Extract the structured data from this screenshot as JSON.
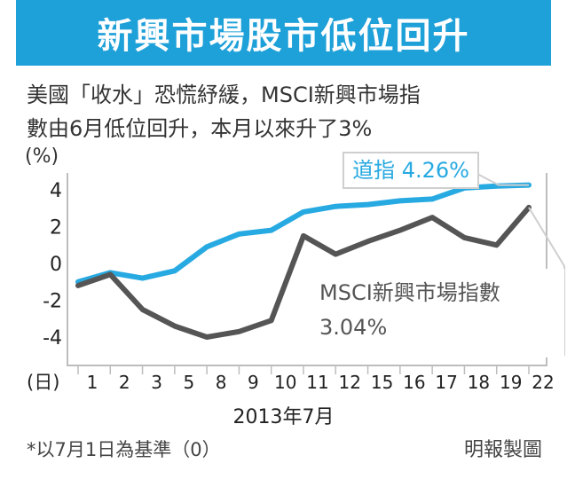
{
  "title": "新興市場股市低位回升",
  "subtitle_lines": [
    "美國「收水」恐慌紓緩，MSCI新興市場指",
    "數由6月低位回升，本月以來升了3%"
  ],
  "unit": "(%)",
  "month_label": "2013年7月",
  "footnote": "*以7月1日為基準（0）",
  "credit": "明報製圖",
  "colors": {
    "title_bg": "#1ea0d8",
    "dow_line": "#27a9e1",
    "msci_line": "#555555",
    "callout_border": "#cfcfcf"
  },
  "chart_data": {
    "type": "line",
    "title": "新興市場股市低位回升",
    "xlabel": "2013年7月",
    "ylabel": "(%)",
    "x_unit": "(日)",
    "categories": [
      "1",
      "2",
      "3",
      "5",
      "8",
      "9",
      "10",
      "11",
      "12",
      "15",
      "16",
      "17",
      "18",
      "19",
      "22"
    ],
    "ylim": [
      -5,
      5
    ],
    "yticks": [
      4,
      2,
      0,
      -2,
      -4
    ],
    "ytick_labels": [
      "4",
      "2",
      "0",
      "-2",
      "-4"
    ],
    "series": [
      {
        "name": "道指",
        "label": "道指 4.26%",
        "color": "#27a9e1",
        "values": [
          -1.0,
          -0.5,
          -0.8,
          -0.4,
          0.9,
          1.6,
          1.8,
          2.8,
          3.1,
          3.2,
          3.4,
          3.5,
          4.1,
          4.2,
          4.26
        ]
      },
      {
        "name": "MSCI新興市場指數",
        "label_line1": "MSCI新興市場指數",
        "label_line2": "3.04%",
        "color": "#555555",
        "values": [
          -1.2,
          -0.6,
          -2.5,
          -3.4,
          -4.0,
          -3.7,
          -3.1,
          1.5,
          0.5,
          1.2,
          1.8,
          2.5,
          1.4,
          1.0,
          3.04
        ]
      }
    ]
  }
}
